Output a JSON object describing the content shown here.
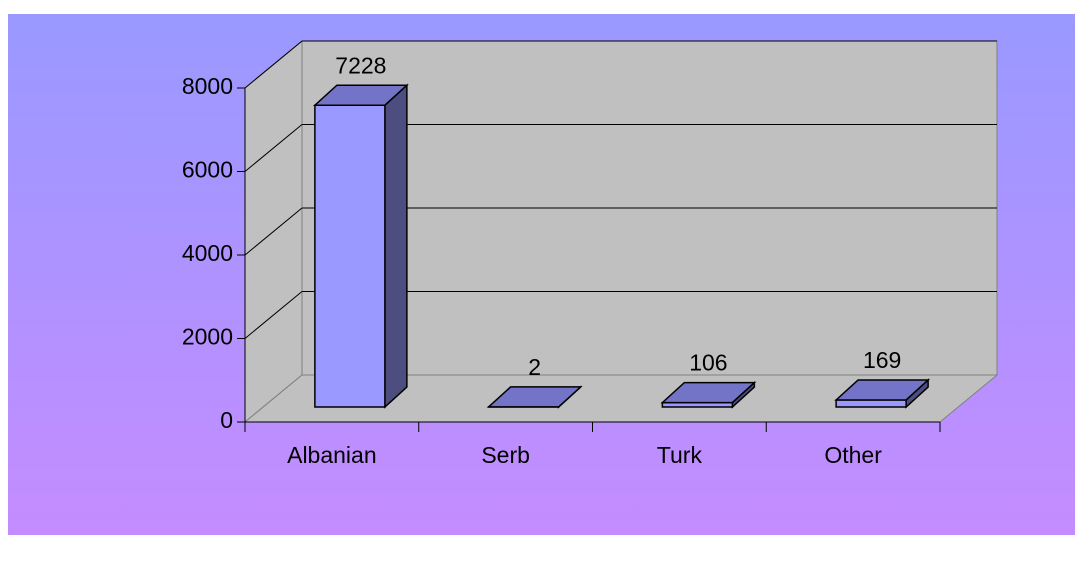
{
  "chart_data": {
    "type": "bar3d",
    "categories": [
      "Albanian",
      "Serb",
      "Turk",
      "Other"
    ],
    "values": [
      7228,
      2,
      106,
      169
    ],
    "color": "#9999ff",
    "ylim": [
      0,
      8000
    ],
    "yticks": [
      0,
      2000,
      4000,
      6000,
      8000
    ],
    "grid": true
  }
}
